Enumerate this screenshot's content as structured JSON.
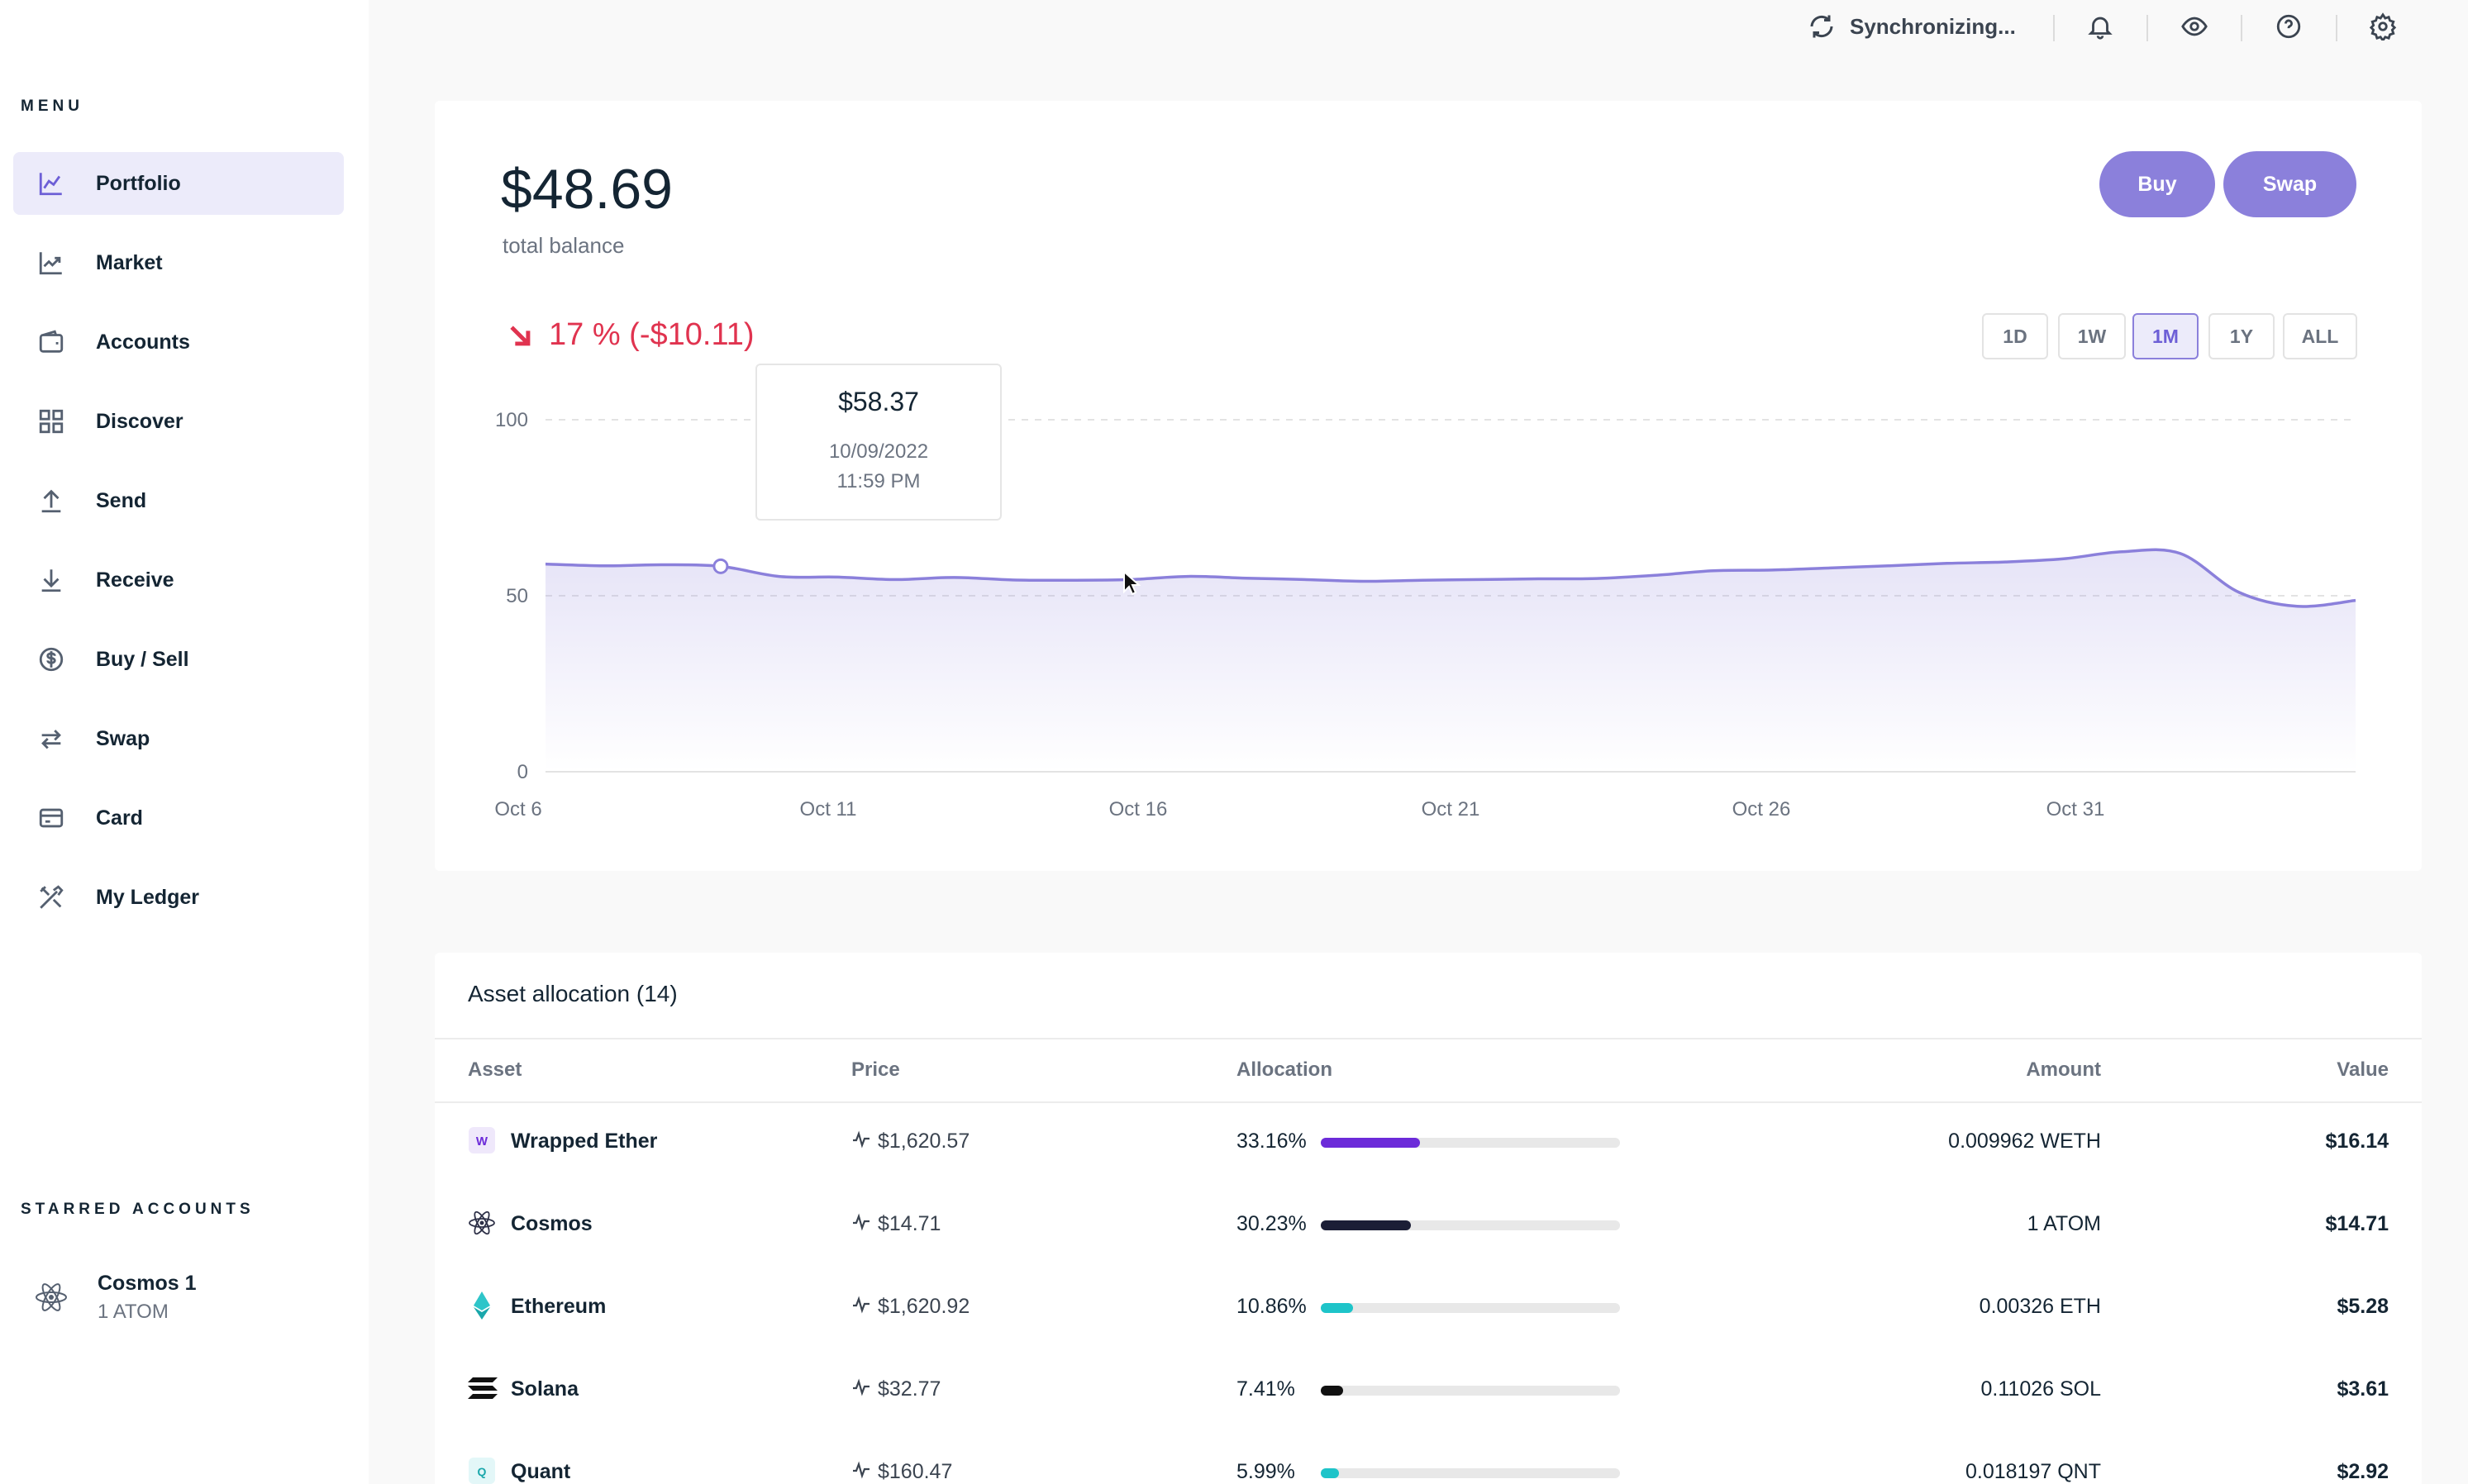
{
  "sidebar": {
    "menu_title": "MENU",
    "items": [
      {
        "label": "Portfolio",
        "icon": "chart-line-icon",
        "active": true
      },
      {
        "label": "Market",
        "icon": "trend-icon"
      },
      {
        "label": "Accounts",
        "icon": "wallet-icon"
      },
      {
        "label": "Discover",
        "icon": "grid-icon"
      },
      {
        "label": "Send",
        "icon": "arrow-up-icon"
      },
      {
        "label": "Receive",
        "icon": "arrow-down-icon"
      },
      {
        "label": "Buy / Sell",
        "icon": "dollar-icon"
      },
      {
        "label": "Swap",
        "icon": "swap-icon"
      },
      {
        "label": "Card",
        "icon": "card-icon"
      },
      {
        "label": "My Ledger",
        "icon": "tools-icon"
      }
    ],
    "starred_title": "STARRED ACCOUNTS",
    "starred": [
      {
        "name": "Cosmos 1",
        "sub": "1 ATOM",
        "icon": "cosmos-icon"
      }
    ]
  },
  "topbar": {
    "sync_label": "Synchronizing...",
    "icons": [
      "bell-icon",
      "eye-icon",
      "help-icon",
      "gear-icon"
    ]
  },
  "balance": {
    "value": "$48.69",
    "label": "total balance",
    "buy_label": "Buy",
    "swap_label": "Swap",
    "change": "17 % (-$10.11)",
    "ranges": [
      "1D",
      "1W",
      "1M",
      "1Y",
      "ALL"
    ],
    "active_range": "1M",
    "tooltip": {
      "value": "$58.37",
      "date": "10/09/2022",
      "time": "11:59 PM"
    }
  },
  "chart_data": {
    "type": "area",
    "yticks": [
      "100",
      "50",
      "0"
    ],
    "xticks": [
      "Oct 6",
      "Oct 11",
      "Oct 16",
      "Oct 21",
      "Oct 26",
      "Oct 31"
    ],
    "ylim": [
      0,
      100
    ],
    "x": [
      "Oct 6",
      "Oct 7",
      "Oct 8",
      "Oct 9",
      "Oct 10",
      "Oct 11",
      "Oct 12",
      "Oct 13",
      "Oct 14",
      "Oct 15",
      "Oct 16",
      "Oct 17",
      "Oct 18",
      "Oct 19",
      "Oct 20",
      "Oct 21",
      "Oct 22",
      "Oct 23",
      "Oct 24",
      "Oct 25",
      "Oct 26",
      "Oct 27",
      "Oct 28",
      "Oct 29",
      "Oct 30",
      "Oct 31",
      "Nov 1",
      "Nov 2",
      "Nov 3",
      "Nov 4",
      "Nov 5",
      "Nov 6"
    ],
    "values": [
      59,
      58.5,
      58.8,
      58.37,
      55.5,
      55.3,
      54.6,
      55.2,
      54.5,
      54.4,
      54.6,
      55.5,
      55.0,
      54.6,
      54.1,
      54.4,
      54.6,
      54.8,
      54.9,
      55.8,
      57.1,
      57.3,
      57.9,
      58.5,
      59.2,
      59.6,
      60.5,
      62.5,
      62.0,
      51.0,
      47.0,
      48.69
    ],
    "grid": true
  },
  "allocation": {
    "title": "Asset allocation (14)",
    "headers": {
      "asset": "Asset",
      "price": "Price",
      "allocation": "Allocation",
      "amount": "Amount",
      "value": "Value"
    },
    "rows": [
      {
        "name": "Wrapped Ether",
        "price": "$1,620.57",
        "pct": "33.16%",
        "fraction": 0.3316,
        "amount": "0.009962 WETH",
        "value": "$16.14",
        "color": "#6c2bd9",
        "icon": "weth-icon",
        "icon_text": "W"
      },
      {
        "name": "Cosmos",
        "price": "$14.71",
        "pct": "30.23%",
        "fraction": 0.3023,
        "amount": "1 ATOM",
        "value": "$14.71",
        "color": "#1b1e36",
        "icon": "cosmos-icon"
      },
      {
        "name": "Ethereum",
        "price": "$1,620.92",
        "pct": "10.86%",
        "fraction": 0.1086,
        "amount": "0.00326 ETH",
        "value": "$5.28",
        "color": "#1ec4c9",
        "icon": "ethereum-icon"
      },
      {
        "name": "Solana",
        "price": "$32.77",
        "pct": "7.41%",
        "fraction": 0.0741,
        "amount": "0.11026 SOL",
        "value": "$3.61",
        "color": "#111111",
        "icon": "solana-icon"
      },
      {
        "name": "Quant",
        "price": "$160.47",
        "pct": "5.99%",
        "fraction": 0.0599,
        "amount": "0.018197 QNT",
        "value": "$2.92",
        "color": "#1ec4c9",
        "icon": "quant-icon",
        "icon_text": "Q"
      }
    ]
  }
}
